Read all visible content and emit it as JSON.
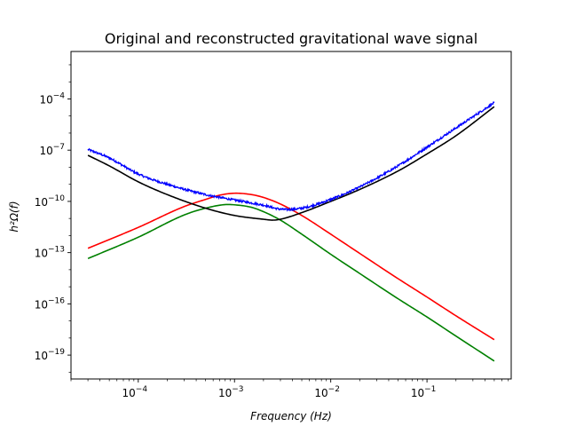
{
  "chart_data": {
    "type": "line",
    "title": "Original and reconstructed gravitational wave signal",
    "xlabel": "Frequency  (Hz)",
    "ylabel": "h²Ω(f)",
    "xscale": "log",
    "yscale": "log",
    "xlim": [
      2e-05,
      0.75
    ],
    "ylim": [
      4e-21,
      0.06
    ],
    "grid": false,
    "legend": "none",
    "x_ticks": [
      {
        "value": 0.0001,
        "base": "10",
        "exp": "−4"
      },
      {
        "value": 0.001,
        "base": "10",
        "exp": "−3"
      },
      {
        "value": 0.01,
        "base": "10",
        "exp": "−2"
      },
      {
        "value": 0.1,
        "base": "10",
        "exp": "−1"
      }
    ],
    "y_ticks": [
      {
        "value": 0.0001,
        "base": "10",
        "exp": "−4"
      },
      {
        "value": 1e-07,
        "base": "10",
        "exp": "−7"
      },
      {
        "value": 1e-10,
        "base": "10",
        "exp": "−10"
      },
      {
        "value": 1e-13,
        "base": "10",
        "exp": "−13"
      },
      {
        "value": 1e-16,
        "base": "10",
        "exp": "−16"
      },
      {
        "value": 1e-19,
        "base": "10",
        "exp": "−19"
      }
    ],
    "series": [
      {
        "color": "#0000ff",
        "noisy": true,
        "x": [
          3e-05,
          5e-05,
          0.0001,
          0.0002,
          0.0005,
          0.001,
          0.002,
          0.003,
          0.005,
          0.01,
          0.02,
          0.05,
          0.1,
          0.2,
          0.5
        ],
        "y": [
          1.1e-07,
          3.5e-08,
          4e-09,
          1e-09,
          2.5e-10,
          1.2e-10,
          6e-11,
          3.5e-11,
          4e-11,
          1.3e-10,
          7e-10,
          1.2e-08,
          1.5e-07,
          2e-06,
          6e-05
        ]
      },
      {
        "color": "#000000",
        "x": [
          3e-05,
          5e-05,
          0.0001,
          0.0002,
          0.0005,
          0.001,
          0.002,
          0.0025,
          0.003,
          0.005,
          0.01,
          0.02,
          0.05,
          0.1,
          0.2,
          0.5
        ],
        "y": [
          5e-08,
          1.2e-08,
          1.4e-09,
          2.5e-10,
          4e-11,
          1.5e-11,
          9e-12,
          8e-12,
          9e-12,
          2.2e-11,
          1e-10,
          5e-10,
          6e-09,
          6e-08,
          7e-07,
          3.5e-05
        ]
      },
      {
        "color": "#ff0000",
        "x": [
          3e-05,
          0.0001,
          0.0003,
          0.0005,
          0.0007,
          0.001,
          0.0015,
          0.002,
          0.003,
          0.005,
          0.01,
          0.02,
          0.05,
          0.1,
          0.2,
          0.5
        ],
        "y": [
          1.8e-13,
          3e-12,
          5e-11,
          1.3e-10,
          2.3e-10,
          3e-10,
          2.5e-10,
          1.7e-10,
          7e-11,
          1.5e-11,
          1.2e-12,
          9e-14,
          3e-15,
          2.5e-16,
          2e-17,
          8e-19
        ]
      },
      {
        "color": "#008000",
        "x": [
          3e-05,
          0.0001,
          0.0003,
          0.0005,
          0.0008,
          0.001,
          0.0015,
          0.002,
          0.003,
          0.005,
          0.01,
          0.02,
          0.05,
          0.1,
          0.2,
          0.5
        ],
        "y": [
          4.5e-14,
          8e-13,
          1.6e-11,
          4e-11,
          6.5e-11,
          6.3e-11,
          4.5e-11,
          2.5e-11,
          8e-12,
          1.2e-12,
          8e-14,
          6e-15,
          2e-16,
          1.7e-17,
          1.3e-18,
          4.5e-20
        ]
      }
    ]
  }
}
